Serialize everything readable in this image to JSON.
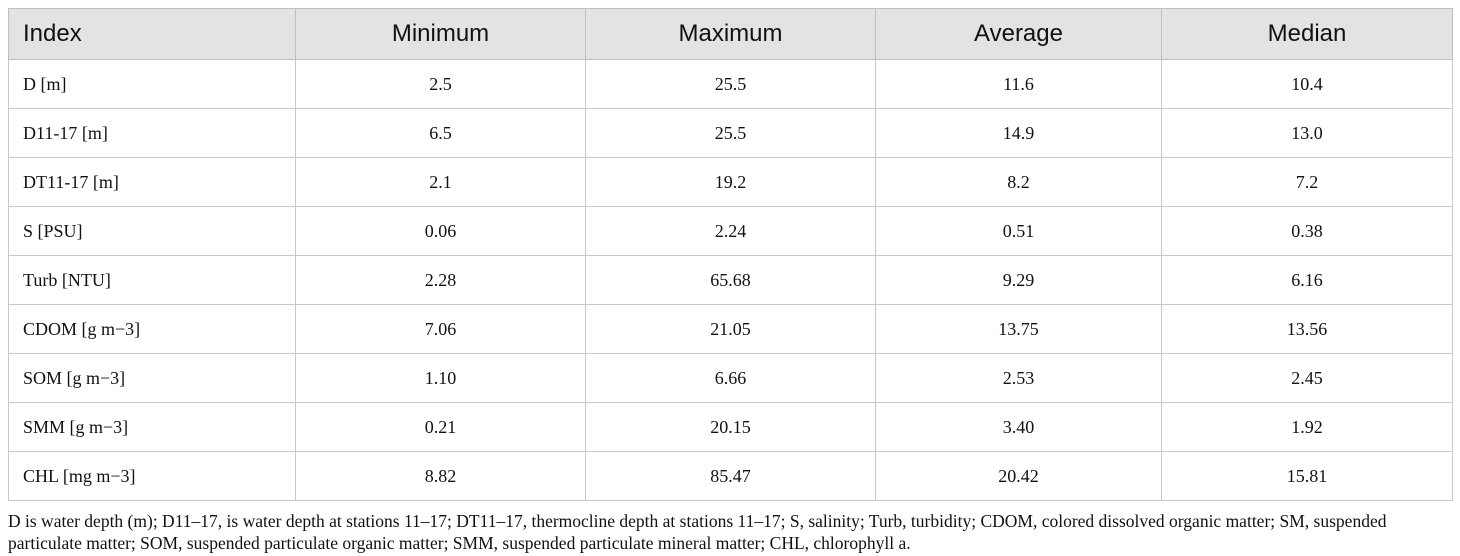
{
  "table": {
    "headers": [
      "Index",
      "Minimum",
      "Maximum",
      "Average",
      "Median"
    ],
    "rows": [
      {
        "index": "D [m]",
        "values": [
          "2.5",
          "25.5",
          "11.6",
          "10.4"
        ]
      },
      {
        "index": "D11-17 [m]",
        "values": [
          "6.5",
          "25.5",
          "14.9",
          "13.0"
        ]
      },
      {
        "index": "DT11-17 [m]",
        "values": [
          "2.1",
          "19.2",
          "8.2",
          "7.2"
        ]
      },
      {
        "index": "S [PSU]",
        "values": [
          "0.06",
          "2.24",
          "0.51",
          "0.38"
        ]
      },
      {
        "index": "Turb [NTU]",
        "values": [
          "2.28",
          "65.68",
          "9.29",
          "6.16"
        ]
      },
      {
        "index": "CDOM [g m−3]",
        "values": [
          "7.06",
          "21.05",
          "13.75",
          "13.56"
        ]
      },
      {
        "index": "SOM [g m−3]",
        "values": [
          "1.10",
          "6.66",
          "2.53",
          "2.45"
        ]
      },
      {
        "index": "SMM [g m−3]",
        "values": [
          "0.21",
          "20.15",
          "3.40",
          "1.92"
        ]
      },
      {
        "index": "CHL [mg m−3]",
        "values": [
          "8.82",
          "85.47",
          "20.42",
          "15.81"
        ]
      }
    ]
  },
  "footnote": "D is water depth (m); D11–17, is water depth at stations 11–17; DT11–17, thermocline depth at stations 11–17; S, salinity; Turb, turbidity; CDOM, colored dissolved organic matter; SM, suspended particulate matter; SOM, suspended particulate organic matter; SMM, suspended particulate mineral matter; CHL, chlorophyll a."
}
